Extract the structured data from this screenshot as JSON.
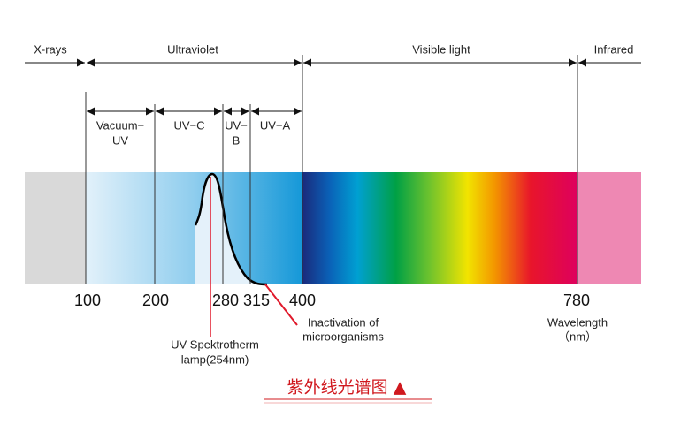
{
  "regions": {
    "xrays": "X-rays",
    "ultraviolet": "Ultraviolet",
    "visible": "Visible light",
    "infrared": "Infrared"
  },
  "uv_bands": {
    "vacuum_uv": [
      "Vacuum−",
      "UV"
    ],
    "uv_c": "UV−C",
    "uv_b": [
      "UV−",
      "B"
    ],
    "uv_a": "UV−A"
  },
  "wavelength_ticks": [
    "100",
    "200",
    "280",
    "315",
    "400",
    "780"
  ],
  "axis_label": [
    "Wavelength",
    "（nm）"
  ],
  "annotations": {
    "inactivation": [
      "Inactivation of",
      "microorganisms"
    ],
    "lamp": [
      "UV Spektrotherm",
      "lamp(254nm)"
    ]
  },
  "caption": "紫外线光谱图 ▲"
}
